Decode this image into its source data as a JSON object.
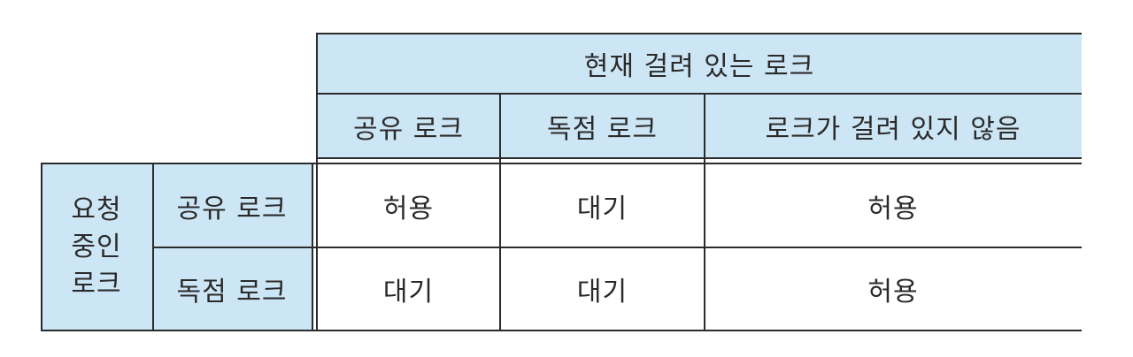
{
  "table": {
    "col_group_header": "현재 걸려 있는 로크",
    "col_headers": [
      "공유 로크",
      "독점 로크",
      "로크가 걸려 있지 않음"
    ],
    "row_group_header": [
      "요청",
      "중인",
      "로크"
    ],
    "rows": [
      {
        "label": "공유 로크",
        "cells": [
          "허용",
          "대기",
          "허용"
        ]
      },
      {
        "label": "독점 로크",
        "cells": [
          "대기",
          "대기",
          "허용"
        ]
      }
    ]
  }
}
